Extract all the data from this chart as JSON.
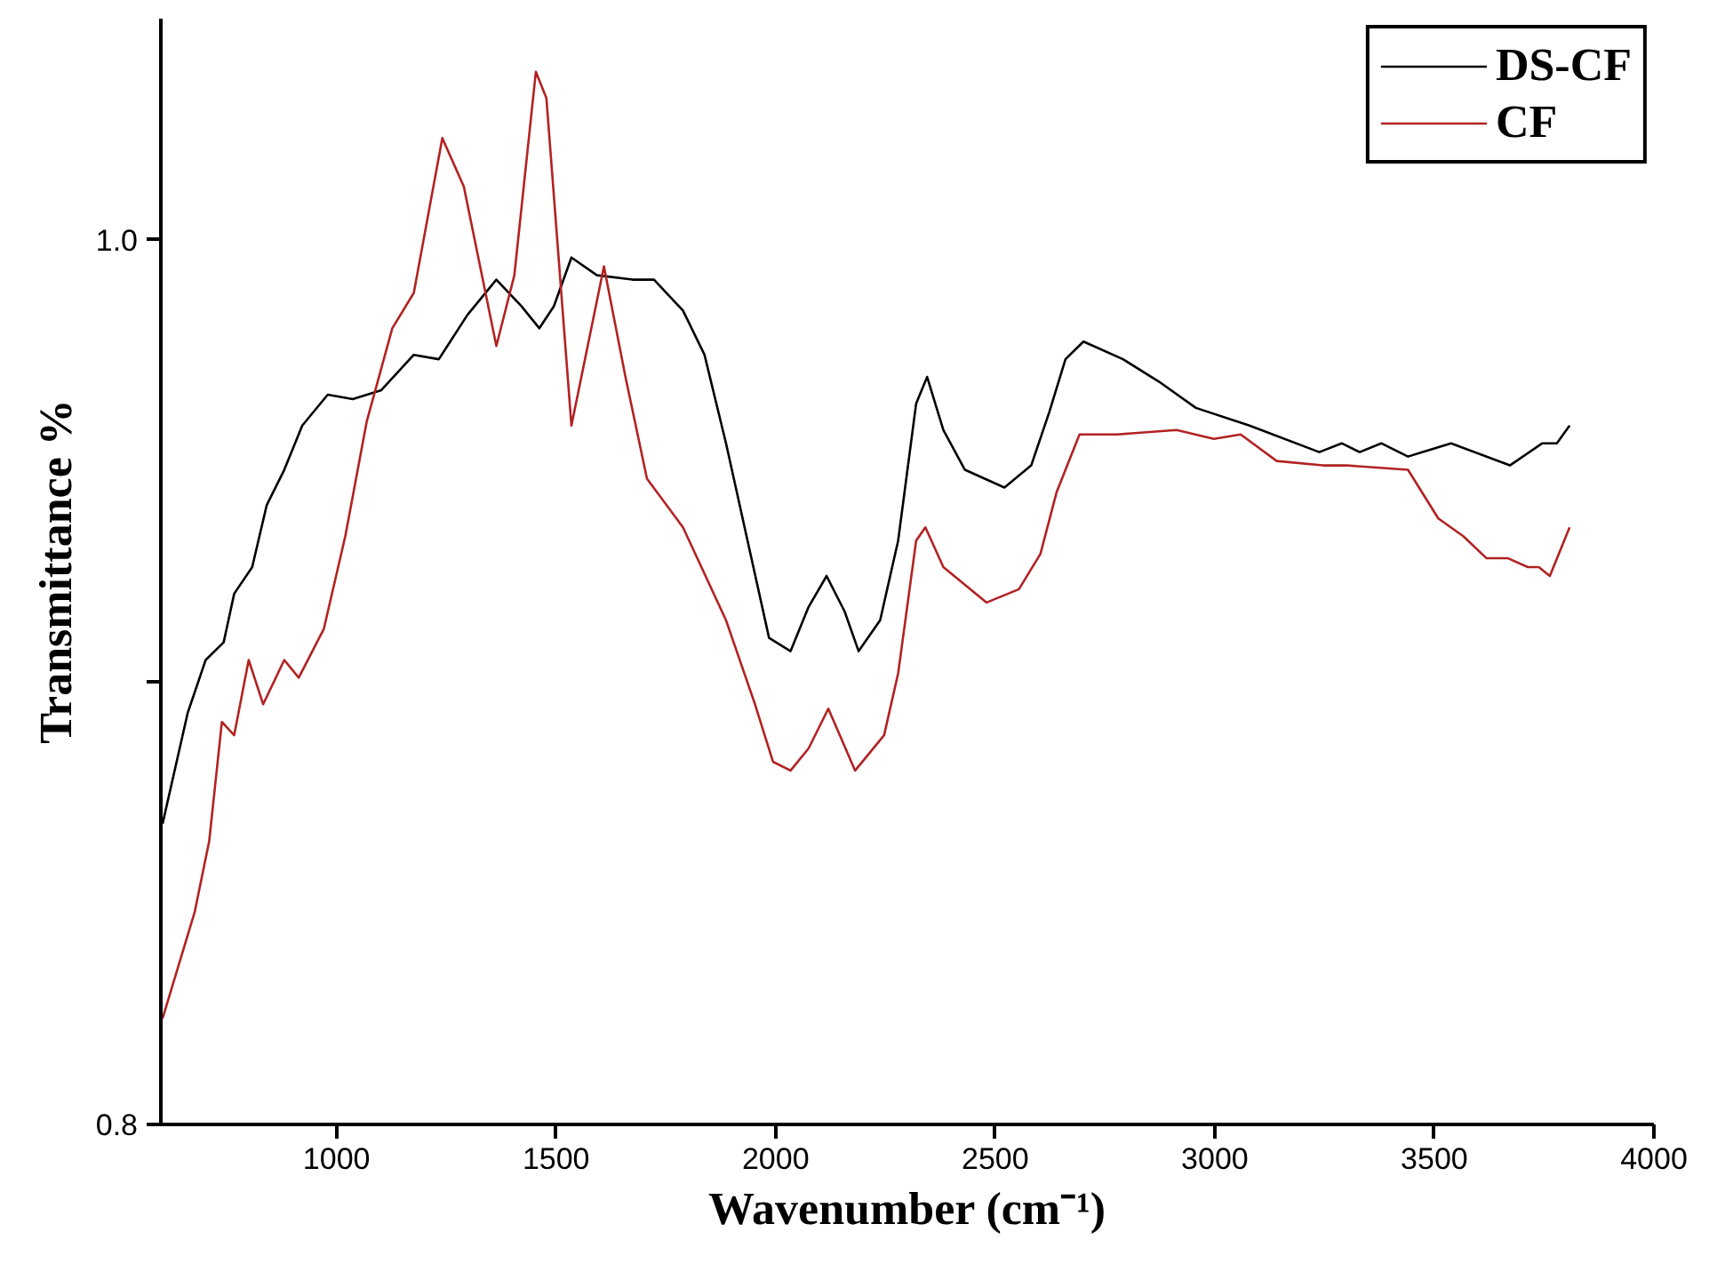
{
  "chart_data": {
    "type": "line",
    "xlabel": "Wavenumber (cm⁻¹)",
    "ylabel": "Transmittance %",
    "xlim": [
      600,
      4000
    ],
    "ylim": [
      0.8,
      1.05
    ],
    "xticks": [
      1000,
      1500,
      2000,
      2500,
      3000,
      3500,
      4000
    ],
    "yticks": [
      {
        "value": 0.8,
        "label": "0.8"
      },
      {
        "value": 0.9,
        "label": null
      },
      {
        "value": 1.0,
        "label": "1.0"
      }
    ],
    "grid": false,
    "legend": "top right",
    "marker": "none",
    "line_style": "solid",
    "series": [
      {
        "name": "DS-CF",
        "color": "#000000",
        "x": [
          604,
          661,
          702,
          743,
          767,
          808,
          841,
          881,
          922,
          980,
          1037,
          1102,
          1176,
          1233,
          1298,
          1364,
          1421,
          1462,
          1495,
          1535,
          1593,
          1674,
          1723,
          1789,
          1838,
          1887,
          1936,
          1985,
          2034,
          2075,
          2116,
          2157,
          2189,
          2238,
          2279,
          2320,
          2345,
          2382,
          2431,
          2521,
          2582,
          2623,
          2660,
          2701,
          2791,
          2872,
          2957,
          3079,
          3238,
          3289,
          3330,
          3379,
          3440,
          3538,
          3672,
          3746,
          3779,
          3808
        ],
        "values": [
          0.868,
          0.893,
          0.905,
          0.909,
          0.92,
          0.926,
          0.94,
          0.948,
          0.958,
          0.965,
          0.964,
          0.966,
          0.974,
          0.973,
          0.983,
          0.991,
          0.985,
          0.98,
          0.985,
          0.996,
          0.992,
          0.991,
          0.991,
          0.984,
          0.974,
          0.954,
          0.932,
          0.91,
          0.907,
          0.917,
          0.924,
          0.916,
          0.907,
          0.914,
          0.932,
          0.963,
          0.969,
          0.957,
          0.948,
          0.944,
          0.949,
          0.961,
          0.973,
          0.977,
          0.973,
          0.968,
          0.962,
          0.958,
          0.952,
          0.954,
          0.952,
          0.954,
          0.951,
          0.954,
          0.949,
          0.954,
          0.954,
          0.958
        ]
      },
      {
        "name": "CF",
        "color": "#b22222",
        "x": [
          604,
          677,
          710,
          739,
          767,
          800,
          833,
          881,
          914,
          971,
          1020,
          1069,
          1127,
          1176,
          1241,
          1290,
          1364,
          1405,
          1454,
          1478,
          1535,
          1609,
          1658,
          1707,
          1789,
          1887,
          1953,
          1994,
          2034,
          2075,
          2120,
          2181,
          2247,
          2279,
          2320,
          2341,
          2382,
          2480,
          2554,
          2603,
          2640,
          2692,
          2778,
          2913,
          2998,
          3059,
          3141,
          3246,
          3299,
          3440,
          3509,
          3566,
          3619,
          3668,
          3713,
          3738,
          3763,
          3808
        ],
        "values": [
          0.824,
          0.848,
          0.864,
          0.891,
          0.888,
          0.905,
          0.895,
          0.905,
          0.901,
          0.912,
          0.933,
          0.959,
          0.98,
          0.988,
          1.023,
          1.012,
          0.976,
          0.992,
          1.038,
          1.032,
          0.958,
          0.994,
          0.969,
          0.946,
          0.935,
          0.914,
          0.895,
          0.882,
          0.88,
          0.885,
          0.894,
          0.88,
          0.888,
          0.902,
          0.932,
          0.935,
          0.926,
          0.918,
          0.921,
          0.929,
          0.943,
          0.956,
          0.956,
          0.957,
          0.955,
          0.956,
          0.95,
          0.949,
          0.949,
          0.948,
          0.937,
          0.933,
          0.928,
          0.928,
          0.926,
          0.926,
          0.924,
          0.935
        ]
      }
    ]
  }
}
